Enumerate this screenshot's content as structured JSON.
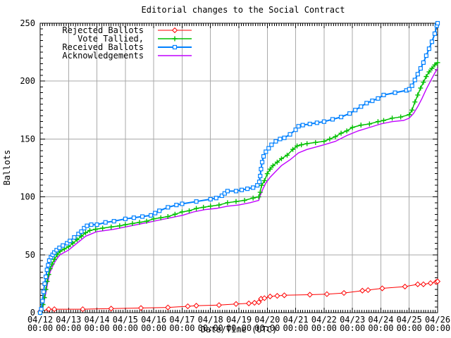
{
  "chart_data": {
    "type": "line",
    "title": "Editorial changes to the Social Contract",
    "xlabel": "Date/Time (UTC)",
    "ylabel": "Ballots",
    "xlim": [
      0,
      14
    ],
    "ylim": [
      0,
      250
    ],
    "grid": true,
    "legend_position": "top-left",
    "background_color": "#ffffff",
    "grid_color": "#aaaaaa",
    "border_color": "#000000",
    "y_ticks": [
      0,
      50,
      100,
      150,
      200,
      250
    ],
    "y_minor_step": 5,
    "x_minor_per_day": 12,
    "x_tick_labels": [
      [
        "04/12",
        "00:00"
      ],
      [
        "04/13",
        "00:00"
      ],
      [
        "04/14",
        "00:00"
      ],
      [
        "04/15",
        "00:00"
      ],
      [
        "04/16",
        "00:00"
      ],
      [
        "04/17",
        "00:00"
      ],
      [
        "04/18",
        "00:00"
      ],
      [
        "04/19",
        "00:00"
      ],
      [
        "04/20",
        "00:00"
      ],
      [
        "04/21",
        "00:00"
      ],
      [
        "04/22",
        "00:00"
      ],
      [
        "04/23",
        "00:00"
      ],
      [
        "04/24",
        "00:00"
      ],
      [
        "04/25",
        "00:00"
      ],
      [
        "04/26",
        "00:00"
      ]
    ],
    "draw_order": [
      0,
      3,
      1,
      2
    ],
    "series": [
      {
        "name": "Rejected Ballots",
        "color": "#ff0000",
        "marker": "diamond",
        "line_width": 1,
        "points": [
          [
            0,
            1
          ],
          [
            0.3,
            3
          ],
          [
            0.5,
            3
          ],
          [
            1.5,
            3
          ],
          [
            2.5,
            3.5
          ],
          [
            3.55,
            4
          ],
          [
            4.5,
            4.5
          ],
          [
            5.2,
            5.5
          ],
          [
            5.5,
            6
          ],
          [
            6.3,
            6.5
          ],
          [
            6.9,
            7.5
          ],
          [
            7.35,
            8
          ],
          [
            7.55,
            8.5
          ],
          [
            7.7,
            9
          ],
          [
            7.78,
            12
          ],
          [
            7.9,
            12.5
          ],
          [
            8.1,
            14
          ],
          [
            8.35,
            14.5
          ],
          [
            8.6,
            15
          ],
          [
            9.5,
            15.5
          ],
          [
            10.1,
            16
          ],
          [
            10.7,
            17
          ],
          [
            11.35,
            19
          ],
          [
            11.55,
            19.5
          ],
          [
            12.05,
            21
          ],
          [
            12.85,
            22.5
          ],
          [
            13.3,
            24.5
          ],
          [
            13.5,
            24.5
          ],
          [
            13.75,
            25.5
          ],
          [
            13.95,
            26.5
          ],
          [
            14,
            27
          ]
        ]
      },
      {
        "name": "Vote Tallied,",
        "color": "#00c000",
        "marker": "plus",
        "line_width": 1.5,
        "points": [
          [
            0,
            0
          ],
          [
            0.05,
            2
          ],
          [
            0.1,
            7
          ],
          [
            0.15,
            13
          ],
          [
            0.2,
            20
          ],
          [
            0.25,
            27
          ],
          [
            0.3,
            33
          ],
          [
            0.35,
            38
          ],
          [
            0.42,
            42
          ],
          [
            0.5,
            46
          ],
          [
            0.6,
            50
          ],
          [
            0.7,
            53
          ],
          [
            0.85,
            55
          ],
          [
            1,
            57
          ],
          [
            1.15,
            60
          ],
          [
            1.3,
            63
          ],
          [
            1.45,
            66
          ],
          [
            1.6,
            69
          ],
          [
            1.75,
            71
          ],
          [
            1.95,
            72
          ],
          [
            2.2,
            73
          ],
          [
            2.5,
            74
          ],
          [
            2.8,
            75
          ],
          [
            3,
            76
          ],
          [
            3.25,
            77
          ],
          [
            3.5,
            78
          ],
          [
            3.75,
            79
          ],
          [
            4,
            81
          ],
          [
            4.25,
            82
          ],
          [
            4.5,
            83
          ],
          [
            4.75,
            85
          ],
          [
            5,
            87
          ],
          [
            5.25,
            88
          ],
          [
            5.5,
            90
          ],
          [
            5.75,
            91
          ],
          [
            6,
            92
          ],
          [
            6.3,
            93
          ],
          [
            6.6,
            95
          ],
          [
            6.9,
            96
          ],
          [
            7.2,
            97
          ],
          [
            7.5,
            99
          ],
          [
            7.7,
            100
          ],
          [
            7.75,
            104
          ],
          [
            7.8,
            110
          ],
          [
            7.9,
            114
          ],
          [
            8,
            120
          ],
          [
            8.1,
            124
          ],
          [
            8.2,
            127
          ],
          [
            8.35,
            130
          ],
          [
            8.5,
            133
          ],
          [
            8.7,
            136
          ],
          [
            8.9,
            141
          ],
          [
            9.05,
            144
          ],
          [
            9.2,
            145
          ],
          [
            9.4,
            146
          ],
          [
            9.7,
            147
          ],
          [
            10,
            148
          ],
          [
            10.2,
            150
          ],
          [
            10.4,
            152
          ],
          [
            10.6,
            155
          ],
          [
            10.8,
            157
          ],
          [
            11,
            160
          ],
          [
            11.3,
            162
          ],
          [
            11.6,
            163
          ],
          [
            11.9,
            165
          ],
          [
            12.1,
            166
          ],
          [
            12.4,
            168
          ],
          [
            12.7,
            169
          ],
          [
            13,
            171
          ],
          [
            13.1,
            175
          ],
          [
            13.2,
            182
          ],
          [
            13.3,
            188
          ],
          [
            13.4,
            194
          ],
          [
            13.5,
            199
          ],
          [
            13.6,
            204
          ],
          [
            13.7,
            208
          ],
          [
            13.8,
            211
          ],
          [
            13.9,
            214
          ],
          [
            14,
            216
          ]
        ]
      },
      {
        "name": "Received Ballots",
        "color": "#0080ff",
        "marker": "square",
        "line_width": 2,
        "points": [
          [
            0,
            0
          ],
          [
            0.04,
            3
          ],
          [
            0.08,
            10
          ],
          [
            0.12,
            18
          ],
          [
            0.16,
            25
          ],
          [
            0.2,
            31
          ],
          [
            0.24,
            37
          ],
          [
            0.28,
            41
          ],
          [
            0.32,
            45
          ],
          [
            0.38,
            48
          ],
          [
            0.44,
            50
          ],
          [
            0.5,
            52
          ],
          [
            0.58,
            54
          ],
          [
            0.68,
            56
          ],
          [
            0.8,
            58
          ],
          [
            0.95,
            60
          ],
          [
            1.05,
            62
          ],
          [
            1.2,
            65
          ],
          [
            1.35,
            68
          ],
          [
            1.45,
            70
          ],
          [
            1.55,
            73
          ],
          [
            1.65,
            75
          ],
          [
            1.8,
            76
          ],
          [
            2,
            76
          ],
          [
            2.3,
            78
          ],
          [
            2.6,
            79
          ],
          [
            3,
            81
          ],
          [
            3.3,
            82
          ],
          [
            3.6,
            83
          ],
          [
            3.9,
            84
          ],
          [
            4.05,
            86
          ],
          [
            4.2,
            88
          ],
          [
            4.5,
            91
          ],
          [
            4.8,
            93
          ],
          [
            5,
            94
          ],
          [
            5.5,
            96
          ],
          [
            6,
            98
          ],
          [
            6.2,
            99
          ],
          [
            6.4,
            101
          ],
          [
            6.5,
            103
          ],
          [
            6.6,
            105
          ],
          [
            6.9,
            105
          ],
          [
            7.1,
            106
          ],
          [
            7.3,
            107
          ],
          [
            7.5,
            108
          ],
          [
            7.65,
            110
          ],
          [
            7.72,
            113
          ],
          [
            7.75,
            118
          ],
          [
            7.78,
            124
          ],
          [
            7.82,
            130
          ],
          [
            7.87,
            135
          ],
          [
            7.95,
            139
          ],
          [
            8.05,
            142
          ],
          [
            8.15,
            145
          ],
          [
            8.3,
            148
          ],
          [
            8.45,
            150
          ],
          [
            8.6,
            151
          ],
          [
            8.8,
            154
          ],
          [
            9,
            158
          ],
          [
            9.1,
            161
          ],
          [
            9.25,
            162
          ],
          [
            9.5,
            163
          ],
          [
            9.75,
            164
          ],
          [
            10,
            165
          ],
          [
            10.3,
            167
          ],
          [
            10.6,
            169
          ],
          [
            10.9,
            172
          ],
          [
            11.1,
            175
          ],
          [
            11.3,
            178
          ],
          [
            11.5,
            181
          ],
          [
            11.7,
            183
          ],
          [
            11.9,
            185
          ],
          [
            12.1,
            188
          ],
          [
            12.5,
            190
          ],
          [
            12.9,
            192
          ],
          [
            13,
            193
          ],
          [
            13.1,
            196
          ],
          [
            13.2,
            201
          ],
          [
            13.3,
            206
          ],
          [
            13.4,
            211
          ],
          [
            13.5,
            216
          ],
          [
            13.6,
            222
          ],
          [
            13.7,
            228
          ],
          [
            13.8,
            234
          ],
          [
            13.9,
            241
          ],
          [
            13.97,
            248
          ],
          [
            14,
            250
          ]
        ]
      },
      {
        "name": "Acknowledgements",
        "color": "#c000ff",
        "marker": "none",
        "line_width": 1.4,
        "points": [
          [
            0,
            0
          ],
          [
            0.05,
            1
          ],
          [
            0.1,
            5
          ],
          [
            0.15,
            11
          ],
          [
            0.2,
            17
          ],
          [
            0.25,
            24
          ],
          [
            0.3,
            30
          ],
          [
            0.35,
            35
          ],
          [
            0.42,
            39
          ],
          [
            0.5,
            43
          ],
          [
            0.6,
            47
          ],
          [
            0.7,
            50
          ],
          [
            0.85,
            52
          ],
          [
            1,
            54
          ],
          [
            1.2,
            58
          ],
          [
            1.4,
            62
          ],
          [
            1.6,
            66
          ],
          [
            1.8,
            68
          ],
          [
            2,
            70
          ],
          [
            2.3,
            71
          ],
          [
            2.6,
            72
          ],
          [
            3,
            74
          ],
          [
            3.4,
            76
          ],
          [
            3.8,
            78
          ],
          [
            4.2,
            80
          ],
          [
            4.6,
            82
          ],
          [
            5,
            84
          ],
          [
            5.4,
            87
          ],
          [
            5.8,
            89
          ],
          [
            6.2,
            90
          ],
          [
            6.6,
            92
          ],
          [
            7,
            93
          ],
          [
            7.4,
            95
          ],
          [
            7.7,
            97
          ],
          [
            7.75,
            101
          ],
          [
            7.85,
            107
          ],
          [
            7.95,
            112
          ],
          [
            8.1,
            117
          ],
          [
            8.3,
            122
          ],
          [
            8.5,
            127
          ],
          [
            8.8,
            132
          ],
          [
            9.1,
            138
          ],
          [
            9.4,
            141
          ],
          [
            9.7,
            143
          ],
          [
            10,
            145
          ],
          [
            10.4,
            148
          ],
          [
            10.8,
            153
          ],
          [
            11.2,
            157
          ],
          [
            11.6,
            160
          ],
          [
            12,
            163
          ],
          [
            12.4,
            165
          ],
          [
            12.8,
            166
          ],
          [
            13,
            168
          ],
          [
            13.15,
            172
          ],
          [
            13.3,
            178
          ],
          [
            13.45,
            185
          ],
          [
            13.6,
            193
          ],
          [
            13.75,
            200
          ],
          [
            13.9,
            207
          ],
          [
            14,
            211
          ]
        ]
      }
    ]
  }
}
